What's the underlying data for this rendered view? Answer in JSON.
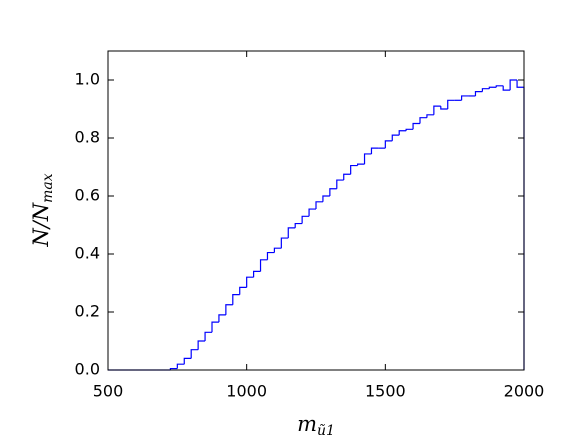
{
  "chart_data": {
    "type": "histogram",
    "x_label": {
      "main": "m",
      "sub": "ũ1"
    },
    "y_label": {
      "main": "N/N",
      "sub": "max"
    },
    "color": "#0000ff",
    "bins": [
      500,
      525,
      550,
      575,
      600,
      625,
      650,
      675,
      700,
      725,
      750,
      775,
      800,
      825,
      850,
      875,
      900,
      925,
      950,
      975,
      1000,
      1025,
      1050,
      1075,
      1100,
      1125,
      1150,
      1175,
      1200,
      1225,
      1250,
      1275,
      1300,
      1325,
      1350,
      1375,
      1400,
      1425,
      1450,
      1475,
      1500,
      1525,
      1550,
      1575,
      1600,
      1625,
      1650,
      1675,
      1700,
      1725,
      1750,
      1775,
      1800,
      1825,
      1850,
      1875,
      1900,
      1925,
      1950,
      1975,
      2000
    ],
    "values": [
      0,
      0,
      0,
      0,
      0,
      0,
      0,
      0,
      0,
      0.005,
      0.02,
      0.04,
      0.07,
      0.1,
      0.13,
      0.165,
      0.19,
      0.225,
      0.26,
      0.285,
      0.32,
      0.34,
      0.38,
      0.405,
      0.42,
      0.455,
      0.49,
      0.505,
      0.53,
      0.555,
      0.58,
      0.6,
      0.625,
      0.655,
      0.675,
      0.705,
      0.71,
      0.745,
      0.765,
      0.765,
      0.79,
      0.81,
      0.825,
      0.83,
      0.85,
      0.87,
      0.88,
      0.91,
      0.9,
      0.93,
      0.93,
      0.945,
      0.945,
      0.96,
      0.97,
      0.975,
      0.98,
      0.965,
      1.0,
      0.975
    ],
    "xlim": [
      500,
      2000
    ],
    "ylim": [
      0,
      1.1
    ],
    "xticks": [
      500,
      1000,
      1500,
      2000
    ],
    "yticks": [
      {
        "value": 0,
        "label": "0.0"
      },
      {
        "value": 0.2,
        "label": "0.2"
      },
      {
        "value": 0.4,
        "label": "0.4"
      },
      {
        "value": 0.6,
        "label": "0.6"
      },
      {
        "value": 0.8,
        "label": "0.8"
      },
      {
        "value": 1.0,
        "label": "1.0"
      }
    ]
  }
}
